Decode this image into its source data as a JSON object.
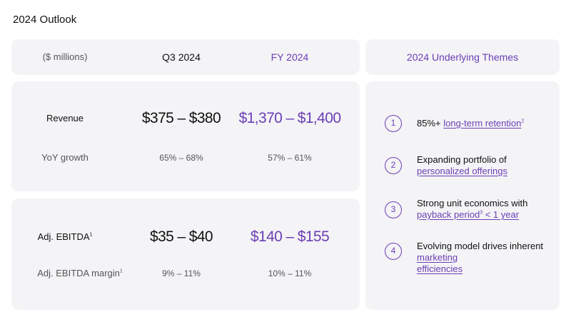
{
  "page": {
    "title": "2024 Outlook"
  },
  "header": {
    "unit_label": "($ millions)",
    "q3_label": "Q3 2024",
    "fy_label": "FY 2024",
    "themes_label": "2024 Underlying Themes"
  },
  "revenue": {
    "label": "Revenue",
    "q3_value": "$375 – $380",
    "fy_value": "$1,370 – $1,400",
    "growth_label": "YoY growth",
    "growth_q3": "65% – 68%",
    "growth_fy": "57% – 61%"
  },
  "ebitda": {
    "label": "Adj. EBITDA",
    "label_footnote": "1",
    "q3_value": "$35 – $40",
    "fy_value": "$140 – $155",
    "margin_label": "Adj. EBITDA margin",
    "margin_footnote": "1",
    "margin_q3": "9% – 11%",
    "margin_fy": "10% – 11%"
  },
  "themes": [
    {
      "num": "1",
      "text_a": "85%+ ",
      "link_a": "long-term retention",
      "footnote": "2"
    },
    {
      "num": "2",
      "text_a": "Expanding portfolio of",
      "link_a": "personalized offerings"
    },
    {
      "num": "3",
      "text_a": "Strong unit economics with",
      "link_a": "payback period",
      "footnote": "3",
      "link_b": " < 1 year"
    },
    {
      "num": "4",
      "text_a": "Evolving model drives inherent ",
      "link_a": "marketing",
      "link_b": "efficiencies"
    }
  ],
  "colors": {
    "accent": "#6a3fb5",
    "card_bg": "#f4f3f6",
    "text": "#111111",
    "muted": "#555555"
  }
}
